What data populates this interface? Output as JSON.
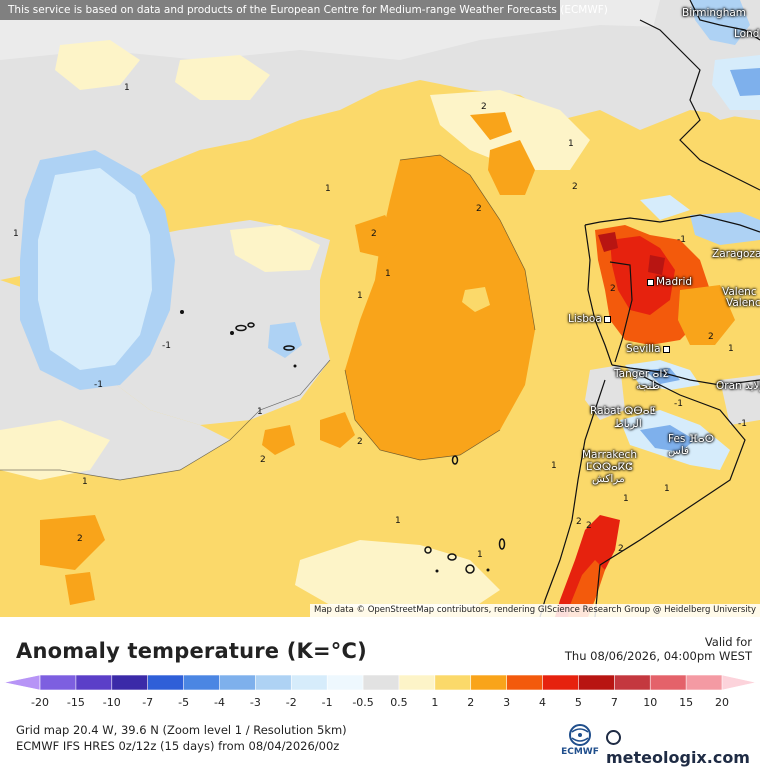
{
  "attribution_top": "This service is based on data and products of the European Centre for Medium-range Weather Forecasts (ECMWF)",
  "attribution_bottom": "Map data © OpenStreetMap contributors, rendering GIScience Research Group @ Heidelberg University",
  "cities": [
    {
      "name": "Birmingham"
    },
    {
      "name": "Lond"
    },
    {
      "name": "Zaragoza"
    },
    {
      "name": "Madrid"
    },
    {
      "name": "Valenc"
    },
    {
      "name": "Valenc"
    },
    {
      "name": "Lisboa"
    },
    {
      "name": "Sevilla"
    },
    {
      "name": "Tanger ⴰⵏⵉ"
    },
    {
      "name": "طنجة"
    },
    {
      "name": "Oran ولايد"
    },
    {
      "name": "Rabat ⵕⴱⴰⵟ"
    },
    {
      "name": "الرباط"
    },
    {
      "name": "Fes ⴼⴰⵙ"
    },
    {
      "name": "فاس"
    },
    {
      "name": "Marrakech"
    },
    {
      "name": "ⵎⵕⵕⴰⴽⵛ"
    },
    {
      "name": "مراكش"
    }
  ],
  "contour_labels": [
    "1",
    "2",
    "1",
    "2",
    "1",
    "2",
    "2",
    "1",
    "1",
    "1",
    "-1",
    "-1",
    "1",
    "2",
    "2",
    "1",
    "1",
    "1",
    "2",
    "1",
    "2",
    "2",
    "2",
    "2",
    "2",
    "-1",
    "-1",
    "-1",
    "1",
    "1",
    "1"
  ],
  "legend": {
    "title": "Anomaly temperature (K=°C)",
    "valid_label": "Valid for",
    "valid_time": "Thu 08/06/2026, 04:00pm WEST",
    "scale_labels": [
      "-20",
      "-15",
      "-10",
      "-7",
      "-5",
      "-4",
      "-3",
      "-2",
      "-1",
      "-0.5",
      "0.5",
      "1",
      "2",
      "3",
      "4",
      "5",
      "7",
      "10",
      "15",
      "20"
    ],
    "colors": [
      "#b794f6",
      "#7d5fe0",
      "#5b3fc8",
      "#3b2aa8",
      "#2f5fd8",
      "#4b86e3",
      "#7eb0ec",
      "#aed2f4",
      "#d6ecfb",
      "#eef8fe",
      "#e2e2e2",
      "#fdf4c8",
      "#fbd96a",
      "#f9a41a",
      "#f35a0c",
      "#e6220e",
      "#b81512",
      "#c4383f",
      "#e4626a",
      "#f49aa3",
      "#fcd3db"
    ]
  },
  "grid_info": "Grid map 20.4 W, 39.6 N (Zoom level 1 / Resolution 5km)",
  "model_info": "ECMWF IFS HRES 0z/12z (15 days)  from  08/04/2026/00z",
  "ecmwf_logo_text": "ECMWF",
  "brand": "meteologix.com"
}
